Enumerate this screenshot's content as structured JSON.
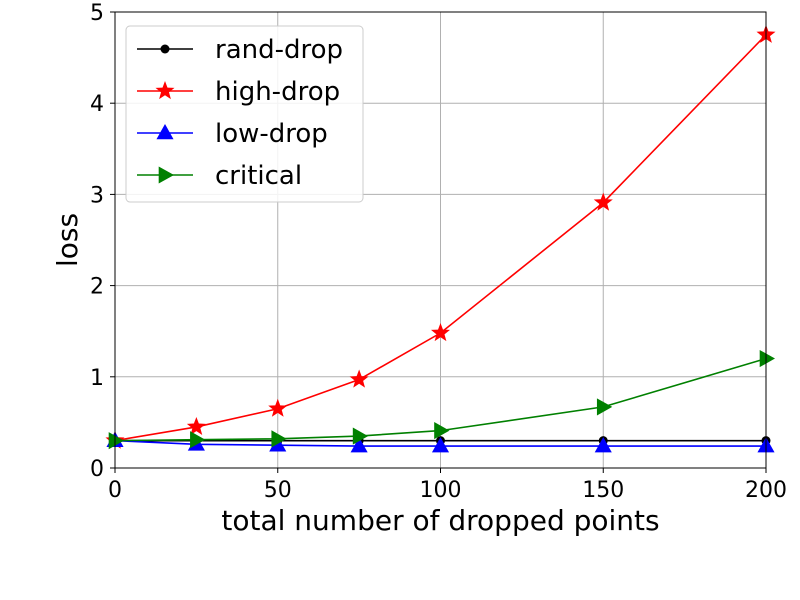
{
  "chart_data": {
    "type": "line",
    "title": "",
    "xlabel": "total number of dropped points",
    "ylabel": "loss",
    "xlim": [
      0,
      200
    ],
    "ylim": [
      0,
      5
    ],
    "xticks": [
      0,
      50,
      100,
      150,
      200
    ],
    "yticks": [
      0,
      1,
      2,
      3,
      4,
      5
    ],
    "grid": true,
    "legend_position": "top-left",
    "x": [
      0,
      25,
      50,
      75,
      100,
      150,
      200
    ],
    "series": [
      {
        "name": "rand-drop",
        "color": "#000000",
        "marker": "circle",
        "values": [
          0.3,
          0.3,
          0.3,
          0.3,
          0.3,
          0.3,
          0.3
        ]
      },
      {
        "name": "high-drop",
        "color": "#ff0000",
        "marker": "star",
        "values": [
          0.3,
          0.45,
          0.65,
          0.97,
          1.48,
          2.91,
          4.75
        ]
      },
      {
        "name": "low-drop",
        "color": "#0000ff",
        "marker": "triangle-up",
        "values": [
          0.3,
          0.26,
          0.25,
          0.24,
          0.24,
          0.24,
          0.24
        ]
      },
      {
        "name": "critical",
        "color": "#008000",
        "marker": "triangle-right",
        "values": [
          0.3,
          0.31,
          0.32,
          0.35,
          0.41,
          0.67,
          1.2
        ]
      }
    ]
  }
}
